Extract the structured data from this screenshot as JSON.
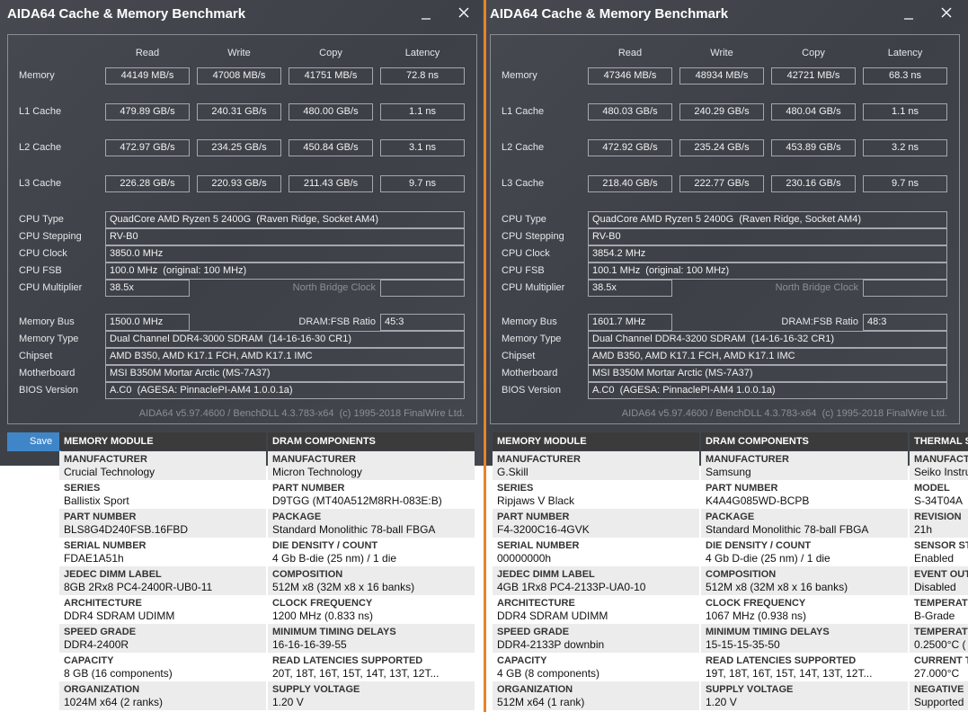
{
  "windows": [
    {
      "title": "AIDA64 Cache & Memory Benchmark",
      "columns": [
        "Read",
        "Write",
        "Copy",
        "Latency"
      ],
      "bench": [
        {
          "label": "Memory",
          "values": [
            "44149 MB/s",
            "47008 MB/s",
            "41751 MB/s",
            "72.8 ns"
          ]
        },
        {
          "label": "L1 Cache",
          "values": [
            "479.89 GB/s",
            "240.31 GB/s",
            "480.00 GB/s",
            "1.1 ns"
          ]
        },
        {
          "label": "L2 Cache",
          "values": [
            "472.97 GB/s",
            "234.25 GB/s",
            "450.84 GB/s",
            "3.1 ns"
          ]
        },
        {
          "label": "L3 Cache",
          "values": [
            "226.28 GB/s",
            "220.93 GB/s",
            "211.43 GB/s",
            "9.7 ns"
          ]
        }
      ],
      "cpu_info": [
        {
          "label": "CPU Type",
          "value": "QuadCore AMD Ryzen 5 2400G  (Raven Ridge, Socket AM4)"
        },
        {
          "label": "CPU Stepping",
          "value": "RV-B0"
        },
        {
          "label": "CPU Clock",
          "value": "3850.0 MHz"
        },
        {
          "label": "CPU FSB",
          "value": "100.0 MHz  (original: 100 MHz)"
        }
      ],
      "multiplier": {
        "label": "CPU Multiplier",
        "value": "38.5x",
        "nb_label": "North Bridge Clock"
      },
      "memory_bus": {
        "label": "Memory Bus",
        "value": "1500.0 MHz",
        "ratio_label": "DRAM:FSB Ratio",
        "ratio": "45:3"
      },
      "mem_info": [
        {
          "label": "Memory Type",
          "value": "Dual Channel DDR4-3000 SDRAM  (14-16-16-30 CR1)"
        },
        {
          "label": "Chipset",
          "value": "AMD B350, AMD K17.1 FCH, AMD K17.1 IMC"
        },
        {
          "label": "Motherboard",
          "value": "MSI B350M Mortar Arctic (MS-7A37)"
        },
        {
          "label": "BIOS Version",
          "value": "A.C0  (AGESA: PinnaclePI-AM4 1.0.0.1a)"
        }
      ],
      "footer": "AIDA64 v5.97.4600 / BenchDLL 4.3.783-x64  (c) 1995-2018 FinalWire Ltd.",
      "button": "Save"
    },
    {
      "title": "AIDA64 Cache & Memory Benchmark",
      "columns": [
        "Read",
        "Write",
        "Copy",
        "Latency"
      ],
      "bench": [
        {
          "label": "Memory",
          "values": [
            "47346 MB/s",
            "48934 MB/s",
            "42721 MB/s",
            "68.3 ns"
          ]
        },
        {
          "label": "L1 Cache",
          "values": [
            "480.03 GB/s",
            "240.29 GB/s",
            "480.04 GB/s",
            "1.1 ns"
          ]
        },
        {
          "label": "L2 Cache",
          "values": [
            "472.92 GB/s",
            "235.24 GB/s",
            "453.89 GB/s",
            "3.2 ns"
          ]
        },
        {
          "label": "L3 Cache",
          "values": [
            "218.40 GB/s",
            "222.77 GB/s",
            "230.16 GB/s",
            "9.7 ns"
          ]
        }
      ],
      "cpu_info": [
        {
          "label": "CPU Type",
          "value": "QuadCore AMD Ryzen 5 2400G  (Raven Ridge, Socket AM4)"
        },
        {
          "label": "CPU Stepping",
          "value": "RV-B0"
        },
        {
          "label": "CPU Clock",
          "value": "3854.2 MHz"
        },
        {
          "label": "CPU FSB",
          "value": "100.1 MHz  (original: 100 MHz)"
        }
      ],
      "multiplier": {
        "label": "CPU Multiplier",
        "value": "38.5x",
        "nb_label": "North Bridge Clock"
      },
      "memory_bus": {
        "label": "Memory Bus",
        "value": "1601.7 MHz",
        "ratio_label": "DRAM:FSB Ratio",
        "ratio": "48:3"
      },
      "mem_info": [
        {
          "label": "Memory Type",
          "value": "Dual Channel DDR4-3200 SDRAM  (14-16-16-32 CR1)"
        },
        {
          "label": "Chipset",
          "value": "AMD B350, AMD K17.1 FCH, AMD K17.1 IMC"
        },
        {
          "label": "Motherboard",
          "value": "MSI B350M Mortar Arctic (MS-7A37)"
        },
        {
          "label": "BIOS Version",
          "value": "A.C0  (AGESA: PinnaclePI-AM4 1.0.0.1a)"
        }
      ],
      "footer": "AIDA64 v5.97.4600 / BenchDLL 4.3.783-x64  (c) 1995-2018 FinalWire Ltd."
    }
  ],
  "tables": [
    {
      "columns": [
        {
          "header": "MEMORY MODULE",
          "rows": [
            {
              "label": "MANUFACTURER",
              "value": "Crucial Technology"
            },
            {
              "label": "SERIES",
              "value": "Ballistix Sport"
            },
            {
              "label": "PART NUMBER",
              "value": "BLS8G4D240FSB.16FBD"
            },
            {
              "label": "SERIAL NUMBER",
              "value": "FDAE1A51h"
            },
            {
              "label": "JEDEC DIMM LABEL",
              "value": "8GB 2Rx8 PC4-2400R-UB0-11"
            },
            {
              "label": "ARCHITECTURE",
              "value": "DDR4 SDRAM UDIMM"
            },
            {
              "label": "SPEED GRADE",
              "value": "DDR4-2400R"
            },
            {
              "label": "CAPACITY",
              "value": "8 GB (16 components)"
            },
            {
              "label": "ORGANIZATION",
              "value": "1024M x64 (2 ranks)"
            }
          ]
        },
        {
          "header": "DRAM COMPONENTS",
          "rows": [
            {
              "label": "MANUFACTURER",
              "value": "Micron Technology"
            },
            {
              "label": "PART NUMBER",
              "value": "D9TGG (MT40A512M8RH-083E:B)"
            },
            {
              "label": "PACKAGE",
              "value": "Standard Monolithic 78-ball FBGA"
            },
            {
              "label": "DIE DENSITY / COUNT",
              "value": "4 Gb B-die (25 nm) / 1 die"
            },
            {
              "label": "COMPOSITION",
              "value": "512M x8 (32M x8 x 16 banks)"
            },
            {
              "label": "CLOCK FREQUENCY",
              "value": "1200 MHz (0.833 ns)"
            },
            {
              "label": "MINIMUM TIMING DELAYS",
              "value": "16-16-16-39-55"
            },
            {
              "label": "READ LATENCIES SUPPORTED",
              "value": "20T, 18T, 16T, 15T, 14T, 13T, 12T..."
            },
            {
              "label": "SUPPLY VOLTAGE",
              "value": "1.20 V"
            }
          ]
        }
      ]
    },
    {
      "columns": [
        {
          "header": "MEMORY MODULE",
          "rows": [
            {
              "label": "MANUFACTURER",
              "value": "G.Skill"
            },
            {
              "label": "SERIES",
              "value": "Ripjaws V Black"
            },
            {
              "label": "PART NUMBER",
              "value": "F4-3200C16-4GVK"
            },
            {
              "label": "SERIAL NUMBER",
              "value": "00000000h"
            },
            {
              "label": "JEDEC DIMM LABEL",
              "value": "4GB 1Rx8 PC4-2133P-UA0-10"
            },
            {
              "label": "ARCHITECTURE",
              "value": "DDR4 SDRAM UDIMM"
            },
            {
              "label": "SPEED GRADE",
              "value": "DDR4-2133P downbin"
            },
            {
              "label": "CAPACITY",
              "value": "4 GB (8 components)"
            },
            {
              "label": "ORGANIZATION",
              "value": "512M x64 (1 rank)"
            }
          ]
        },
        {
          "header": "DRAM COMPONENTS",
          "rows": [
            {
              "label": "MANUFACTURER",
              "value": "Samsung"
            },
            {
              "label": "PART NUMBER",
              "value": "K4A4G085WD-BCPB"
            },
            {
              "label": "PACKAGE",
              "value": "Standard Monolithic 78-ball FBGA"
            },
            {
              "label": "DIE DENSITY / COUNT",
              "value": "4 Gb D-die (25 nm) / 1 die"
            },
            {
              "label": "COMPOSITION",
              "value": "512M x8 (32M x8 x 16 banks)"
            },
            {
              "label": "CLOCK FREQUENCY",
              "value": "1067 MHz (0.938 ns)"
            },
            {
              "label": "MINIMUM TIMING DELAYS",
              "value": "15-15-15-35-50"
            },
            {
              "label": "READ LATENCIES SUPPORTED",
              "value": "19T, 18T, 16T, 15T, 14T, 13T, 12T..."
            },
            {
              "label": "SUPPLY VOLTAGE",
              "value": "1.20 V"
            }
          ]
        },
        {
          "header": "THERMAL S",
          "rows": [
            {
              "label": "MANUFACT",
              "value": "Seiko Instru"
            },
            {
              "label": "MODEL",
              "value": "S-34T04A"
            },
            {
              "label": "REVISION",
              "value": "21h"
            },
            {
              "label": "SENSOR ST",
              "value": "Enabled"
            },
            {
              "label": "EVENT OUT",
              "value": "Disabled"
            },
            {
              "label": "TEMPERAT",
              "value": "B-Grade"
            },
            {
              "label": "TEMPERAT",
              "value": "0.2500°C ("
            },
            {
              "label": "CURRENT T",
              "value": "27.000°C"
            },
            {
              "label": "NEGATIVE",
              "value": "Supported"
            }
          ]
        }
      ]
    }
  ]
}
